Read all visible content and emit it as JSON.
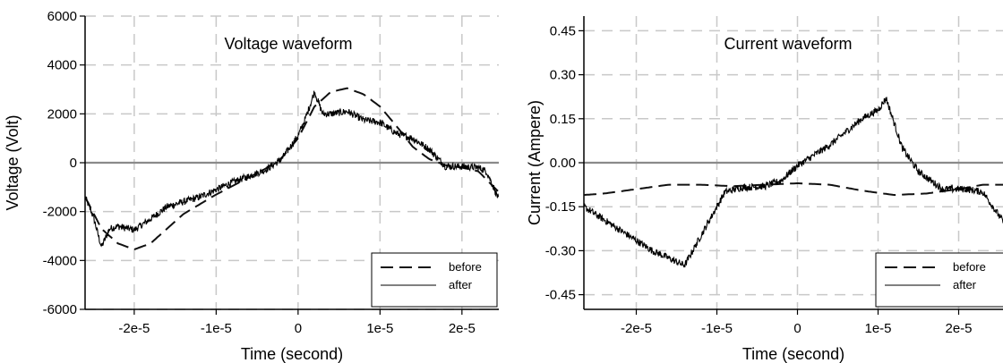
{
  "chart_data": [
    {
      "type": "line",
      "title": "Voltage waveform",
      "xlabel": "Time (second)",
      "ylabel": "Voltage (Volt)",
      "xlim": [
        -2.6e-05,
        2.45e-05
      ],
      "ylim": [
        -6000,
        6000
      ],
      "xticks": [
        -2e-05,
        -1e-05,
        0,
        1e-05,
        2e-05
      ],
      "xtick_labels": [
        "-2e-5",
        "-1e-5",
        "0",
        "1e-5",
        "2e-5"
      ],
      "yticks": [
        6000,
        4000,
        2000,
        0,
        -2000,
        -4000,
        -6000
      ],
      "ytick_labels": [
        "6000",
        "4000",
        "2000",
        "0",
        "-2000",
        "-4000",
        "-6000"
      ],
      "grid": true,
      "zero_line": true,
      "legend_position": "bottom-right",
      "series": [
        {
          "name": "before",
          "style": "dashed",
          "x": [
            -2.6e-05,
            -2.4e-05,
            -2.2e-05,
            -2e-05,
            -1.8e-05,
            -1.6e-05,
            -1.4e-05,
            -1.2e-05,
            -1e-05,
            -8e-06,
            -6e-06,
            -4e-06,
            -2e-06,
            0,
            2e-06,
            4e-06,
            6e-06,
            8e-06,
            1e-05,
            1.2e-05,
            1.4e-05,
            1.6e-05,
            1.8e-05,
            2e-05,
            2.2e-05,
            2.45e-05
          ],
          "y": [
            -1400,
            -2700,
            -3300,
            -3550,
            -3300,
            -2700,
            -2100,
            -1700,
            -1300,
            -950,
            -600,
            -250,
            200,
            1000,
            2300,
            2900,
            3050,
            2800,
            2300,
            1500,
            650,
            150,
            -100,
            -200,
            -350,
            -1200
          ]
        },
        {
          "name": "after",
          "style": "solid-noisy",
          "x": [
            -2.6e-05,
            -2.5e-05,
            -2.4e-05,
            -2.3e-05,
            -2.2e-05,
            -2e-05,
            -1.8e-05,
            -1.6e-05,
            -1.4e-05,
            -1.2e-05,
            -1e-05,
            -8e-06,
            -6e-06,
            -4e-06,
            -2e-06,
            0,
            1e-06,
            2e-06,
            3e-06,
            4e-06,
            6e-06,
            8e-06,
            1e-05,
            1.2e-05,
            1.4e-05,
            1.6e-05,
            1.8e-05,
            2e-05,
            2.2e-05,
            2.3e-05,
            2.45e-05
          ],
          "y": [
            -1400,
            -2200,
            -3450,
            -2700,
            -2600,
            -2750,
            -2300,
            -1800,
            -1600,
            -1400,
            -1100,
            -800,
            -550,
            -300,
            150,
            1100,
            1900,
            2900,
            2000,
            2000,
            2100,
            1750,
            1650,
            1200,
            1000,
            550,
            -150,
            -150,
            -200,
            -350,
            -1500
          ]
        }
      ]
    },
    {
      "type": "line",
      "title": "Current waveform",
      "xlabel": "Time (second)",
      "ylabel": "Current (Ampere)",
      "xlim": [
        -2.65e-05,
        2.55e-05
      ],
      "ylim": [
        -0.5,
        0.5
      ],
      "xticks": [
        -2e-05,
        -1e-05,
        0,
        1e-05,
        2e-05
      ],
      "xtick_labels": [
        "-2e-5",
        "-1e-5",
        "0",
        "1e-5",
        "2e-5"
      ],
      "yticks": [
        0.45,
        0.3,
        0.15,
        0.0,
        -0.15,
        -0.3,
        -0.45
      ],
      "ytick_labels": [
        "0.45",
        "0.30",
        "0.15",
        "0.00",
        "-0.15",
        "-0.30",
        "-0.45"
      ],
      "grid": true,
      "zero_line": true,
      "legend_position": "bottom-right",
      "series": [
        {
          "name": "before",
          "style": "dashed",
          "x": [
            -2.65e-05,
            -2.4e-05,
            -2e-05,
            -1.6e-05,
            -1.2e-05,
            -8e-06,
            -4e-06,
            0,
            4e-06,
            8e-06,
            1.2e-05,
            1.6e-05,
            2e-05,
            2.3e-05
          ],
          "y": [
            -0.11,
            -0.105,
            -0.09,
            -0.075,
            -0.075,
            -0.08,
            -0.075,
            -0.07,
            -0.075,
            -0.095,
            -0.11,
            -0.105,
            -0.09,
            -0.075
          ]
        },
        {
          "name": "after",
          "style": "solid-noisy",
          "x": [
            -2.65e-05,
            -2.2e-05,
            -1.8e-05,
            -1.4e-05,
            -1.2e-05,
            -9e-06,
            -7e-06,
            -4e-06,
            -2e-06,
            0,
            4e-06,
            8e-06,
            1e-05,
            1.1e-05,
            1.3e-05,
            1.5e-05,
            1.8e-05,
            2.1e-05,
            2.3e-05,
            2.55e-05
          ],
          "y": [
            -0.15,
            -0.23,
            -0.3,
            -0.35,
            -0.25,
            -0.1,
            -0.085,
            -0.08,
            -0.06,
            -0.01,
            0.06,
            0.15,
            0.18,
            0.22,
            0.05,
            -0.03,
            -0.09,
            -0.09,
            -0.1,
            -0.2
          ]
        }
      ]
    }
  ]
}
